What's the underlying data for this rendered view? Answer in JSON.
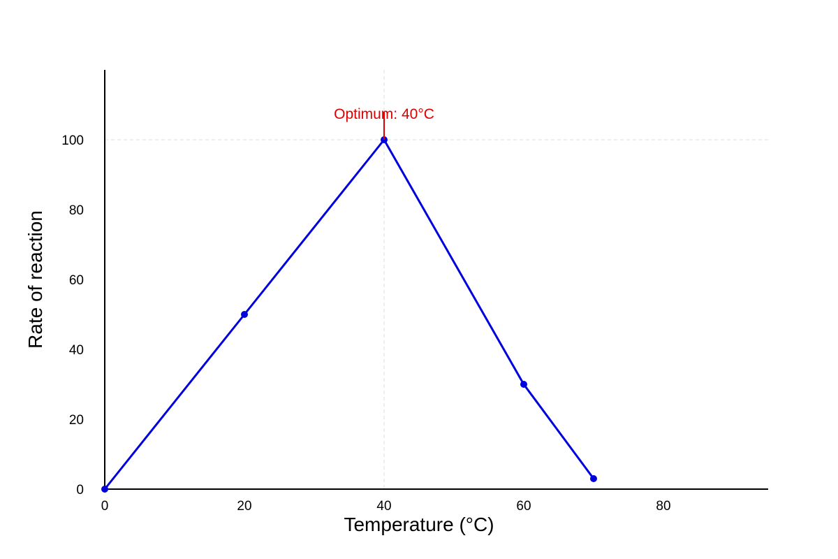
{
  "chart_data": {
    "type": "line",
    "title": "",
    "xlabel": "Temperature (°C)",
    "ylabel": "Rate of reaction",
    "xlim": [
      0,
      95
    ],
    "ylim": [
      0,
      120
    ],
    "x_ticks": [
      0,
      20,
      40,
      60,
      80
    ],
    "y_ticks": [
      0,
      20,
      40,
      60,
      80,
      100
    ],
    "grid": false,
    "legend": "none",
    "series": [
      {
        "color": "#0000dd",
        "points": [
          {
            "x": 0,
            "y": 0
          },
          {
            "x": 20,
            "y": 50
          },
          {
            "x": 40,
            "y": 100
          },
          {
            "x": 60,
            "y": 30
          },
          {
            "x": 70,
            "y": 3
          }
        ]
      }
    ],
    "annotations": [
      {
        "text": "Optimum: 40°C",
        "x": 40,
        "y": 100,
        "color": "#dd0000"
      }
    ],
    "reference_lines": [
      {
        "orientation": "vertical",
        "value": 40,
        "style": "dashed",
        "color": "#dddddd"
      },
      {
        "orientation": "horizontal",
        "value": 100,
        "style": "dashed",
        "color": "#dddddd"
      }
    ]
  }
}
